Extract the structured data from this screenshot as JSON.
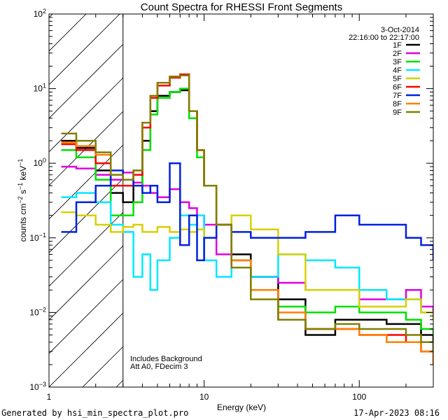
{
  "chart_data": {
    "type": "line",
    "title": "Count Spectra for RHESSI Front Segments",
    "xlabel": "Energy (keV)",
    "ylabel": "counts cm-2 s-1 keV-1",
    "ylabel_parts": {
      "pre": "counts cm",
      "exp1": "−2",
      "mid": " s",
      "exp2": "−1",
      "mid2": " keV",
      "exp3": "−1"
    },
    "xscale": "log",
    "yscale": "log",
    "xlim": [
      1,
      300
    ],
    "ylim": [
      0.001,
      100
    ],
    "x_tick_labels": [
      "1",
      "10",
      "100"
    ],
    "y_tick_labels": [
      {
        "base": "10",
        "exp": "−3",
        "value": 0.001
      },
      {
        "base": "10",
        "exp": "−2",
        "value": 0.01
      },
      {
        "base": "10",
        "exp": "−1",
        "value": 0.1
      },
      {
        "base": "10",
        "exp": "0",
        "value": 1
      },
      {
        "base": "10",
        "exp": "1",
        "value": 10
      },
      {
        "base": "10",
        "exp": "2",
        "value": 100
      }
    ],
    "date": "3-Oct-2014",
    "time_range": "22:16:00 to 22:17:00",
    "annotation_lines": [
      "Includes Background",
      "Att A0, FDecim 3"
    ],
    "excluded_region": {
      "from": 1,
      "to": 3
    },
    "legend_position": "top-right",
    "series": [
      {
        "name": "1F",
        "color": "#000000",
        "x": [
          1.2,
          1.5,
          2,
          2.5,
          3,
          3.5,
          4,
          4.5,
          5,
          6,
          7,
          8,
          9,
          10,
          12,
          15,
          20,
          30,
          45,
          70,
          100,
          150,
          200,
          250,
          300
        ],
        "y": [
          2.0,
          1.6,
          0.8,
          0.4,
          0.3,
          0.5,
          2.0,
          5.0,
          8.0,
          9.0,
          9.5,
          5.0,
          1.5,
          0.5,
          0.15,
          0.06,
          0.03,
          0.015,
          0.005,
          0.008,
          0.008,
          0.007,
          0.007,
          0.005,
          0.003
        ]
      },
      {
        "name": "2F",
        "color": "#e000e0",
        "x": [
          1.2,
          1.5,
          2,
          2.5,
          3,
          3.5,
          4,
          4.5,
          5,
          6,
          7,
          8,
          9,
          10,
          12,
          15,
          20,
          30,
          45,
          70,
          100,
          150,
          200,
          250,
          300
        ],
        "y": [
          0.9,
          0.85,
          0.7,
          0.6,
          0.75,
          0.55,
          0.5,
          0.4,
          0.35,
          0.45,
          0.3,
          0.25,
          0.2,
          0.15,
          0.06,
          0.04,
          0.03,
          0.025,
          0.02,
          0.02,
          0.015,
          0.015,
          0.02,
          0.012,
          0.01
        ]
      },
      {
        "name": "3F",
        "color": "#00e000",
        "x": [
          1.2,
          1.5,
          2,
          2.5,
          3,
          3.5,
          4,
          4.5,
          5,
          6,
          7,
          8,
          9,
          10,
          12,
          15,
          20,
          30,
          45,
          70,
          100,
          150,
          200,
          250,
          300
        ],
        "y": [
          1.5,
          1.2,
          0.6,
          0.2,
          0.2,
          0.3,
          1.5,
          4.5,
          7.5,
          9.0,
          10.0,
          4.0,
          1.2,
          0.5,
          0.15,
          0.05,
          0.02,
          0.012,
          0.01,
          0.012,
          0.01,
          0.01,
          0.008,
          0.006,
          0.005
        ]
      },
      {
        "name": "4F",
        "color": "#00e8ff",
        "x": [
          1.2,
          1.5,
          2,
          2.5,
          3,
          3.5,
          4,
          4.5,
          5,
          6,
          7,
          8,
          9,
          10,
          12,
          15,
          20,
          30,
          45,
          70,
          100,
          150,
          200,
          250,
          300
        ],
        "y": [
          0.35,
          0.4,
          0.3,
          0.15,
          0.12,
          0.03,
          0.06,
          0.02,
          0.05,
          0.1,
          0.2,
          0.15,
          0.2,
          0.05,
          0.03,
          0.04,
          0.03,
          0.06,
          0.05,
          0.04,
          0.02,
          0.015,
          0.015,
          0.01,
          0.008
        ]
      },
      {
        "name": "5F",
        "color": "#d8d000",
        "x": [
          1.2,
          1.5,
          2,
          2.5,
          3,
          3.5,
          4,
          4.5,
          5,
          6,
          7,
          8,
          9,
          10,
          12,
          15,
          20,
          30,
          45,
          70,
          100,
          150,
          200,
          250,
          300
        ],
        "y": [
          0.22,
          0.2,
          0.15,
          0.12,
          0.14,
          0.15,
          0.12,
          0.12,
          0.14,
          0.12,
          0.13,
          0.12,
          0.13,
          0.1,
          0.15,
          0.2,
          0.13,
          0.06,
          0.02,
          0.02,
          0.012,
          0.012,
          0.015,
          0.01,
          0.008
        ]
      },
      {
        "name": "6F",
        "color": "#ff0000",
        "x": [
          1.2,
          1.5,
          2,
          2.5,
          3,
          3.5,
          4,
          4.5,
          5,
          6,
          7,
          8,
          9,
          10,
          12,
          15,
          20,
          30,
          45,
          70,
          100,
          150,
          200,
          250,
          300
        ],
        "y": [
          1.8,
          1.5,
          1.0,
          0.5,
          0.5,
          0.7,
          3.0,
          7.5,
          11.0,
          14.0,
          15.5,
          5.0,
          1.5,
          0.5,
          0.15,
          0.05,
          0.02,
          0.008,
          0.006,
          0.006,
          0.005,
          0.005,
          0.004,
          0.003,
          0.002
        ]
      },
      {
        "name": "7F",
        "color": "#0020e0",
        "x": [
          1.2,
          1.5,
          2,
          2.5,
          3,
          3.5,
          4,
          4.5,
          5,
          6,
          7,
          8,
          9,
          10,
          12,
          15,
          20,
          30,
          45,
          70,
          100,
          150,
          200,
          250,
          300
        ],
        "y": [
          0.12,
          0.3,
          0.5,
          0.8,
          0.6,
          0.5,
          0.4,
          0.5,
          0.3,
          1.0,
          0.08,
          0.2,
          0.05,
          0.1,
          0.15,
          0.12,
          0.1,
          0.1,
          0.12,
          0.2,
          0.15,
          0.15,
          0.1,
          0.08,
          0.05
        ]
      },
      {
        "name": "8F",
        "color": "#ff8000",
        "x": [
          1.2,
          1.5,
          2,
          2.5,
          3,
          3.5,
          4,
          4.5,
          5,
          6,
          7,
          8,
          9,
          10,
          12,
          15,
          20,
          30,
          45,
          70,
          100,
          150,
          200,
          250,
          300
        ],
        "y": [
          1.9,
          1.7,
          1.3,
          0.7,
          0.6,
          0.8,
          3.5,
          8.0,
          12.0,
          14.5,
          15.0,
          5.0,
          1.5,
          0.5,
          0.15,
          0.05,
          0.02,
          0.01,
          0.006,
          0.006,
          0.005,
          0.004,
          0.004,
          0.003,
          0.002
        ]
      },
      {
        "name": "9F",
        "color": "#7f7f00",
        "x": [
          1.2,
          1.5,
          2,
          2.5,
          3,
          3.5,
          4,
          4.5,
          5,
          6,
          7,
          8,
          9,
          10,
          12,
          15,
          20,
          30,
          45,
          70,
          100,
          150,
          200,
          250,
          300
        ],
        "y": [
          2.5,
          2.0,
          1.4,
          0.7,
          0.6,
          0.8,
          3.5,
          8.0,
          12.0,
          14.5,
          15.0,
          5.0,
          1.5,
          0.5,
          0.15,
          0.04,
          0.015,
          0.008,
          0.006,
          0.007,
          0.006,
          0.006,
          0.005,
          0.004,
          0.003
        ]
      }
    ]
  },
  "footer": {
    "left": "Generated by hsi_min_spectra_plot.pro",
    "right": "17-Apr-2023 08:16"
  }
}
